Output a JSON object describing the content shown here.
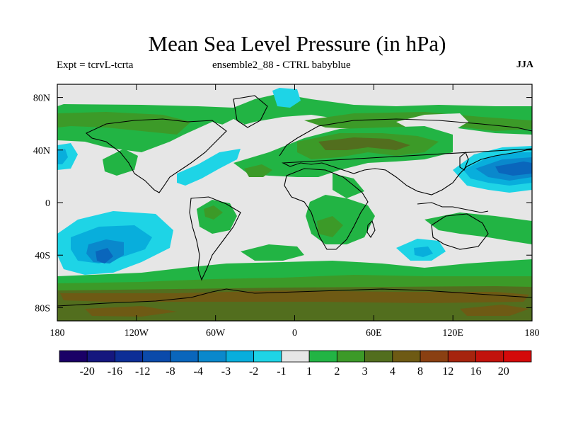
{
  "title": "Mean Sea Level Pressure (in hPa)",
  "subtitle_left": "Expt = tcrvL-tcrta",
  "subtitle_center": "ensemble2_88 - CTRL babyblue",
  "season": "JJA",
  "map": {
    "projection": "cylindrical-equidistant",
    "lon_range": [
      -180,
      180
    ],
    "lat_range": [
      -90,
      90
    ],
    "background_color": "#e6e6e6",
    "lat_ticks": [
      "80N",
      "40N",
      "0",
      "40S",
      "80S"
    ],
    "lon_ticks": [
      "180",
      "120W",
      "60W",
      "0",
      "60E",
      "120E",
      "180"
    ]
  },
  "colorbar": {
    "labels": [
      "-20",
      "-16",
      "-12",
      "-8",
      "-4",
      "-3",
      "-2",
      "-1",
      "1",
      "2",
      "3",
      "4",
      "8",
      "12",
      "16",
      "20"
    ],
    "colors": [
      "#1a0066",
      "#15177e",
      "#0d2e96",
      "#0b4aaa",
      "#0a66bc",
      "#0a88cc",
      "#08aedc",
      "#1ed4e6",
      "#e6e6e6",
      "#22b444",
      "#3c9a28",
      "#526e1e",
      "#6e5a14",
      "#8a4012",
      "#a6240e",
      "#c2120c",
      "#d40a0a"
    ]
  }
}
